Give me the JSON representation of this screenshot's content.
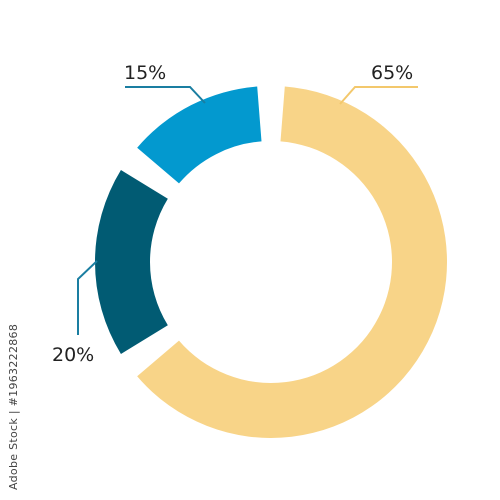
{
  "chart_data": {
    "type": "pie",
    "variant": "donut",
    "slices": [
      {
        "value": 65,
        "label": "65%",
        "color": "#f8d488"
      },
      {
        "value": 20,
        "label": "20%",
        "color": "#015b73"
      },
      {
        "value": 15,
        "label": "15%",
        "color": "#0399cf"
      }
    ],
    "title": "",
    "legend": "none",
    "leader_color": "#1a7ea1",
    "leader_color_65": "#f3c86c"
  },
  "watermark": {
    "text": "Adobe Stock | #1963222868"
  }
}
